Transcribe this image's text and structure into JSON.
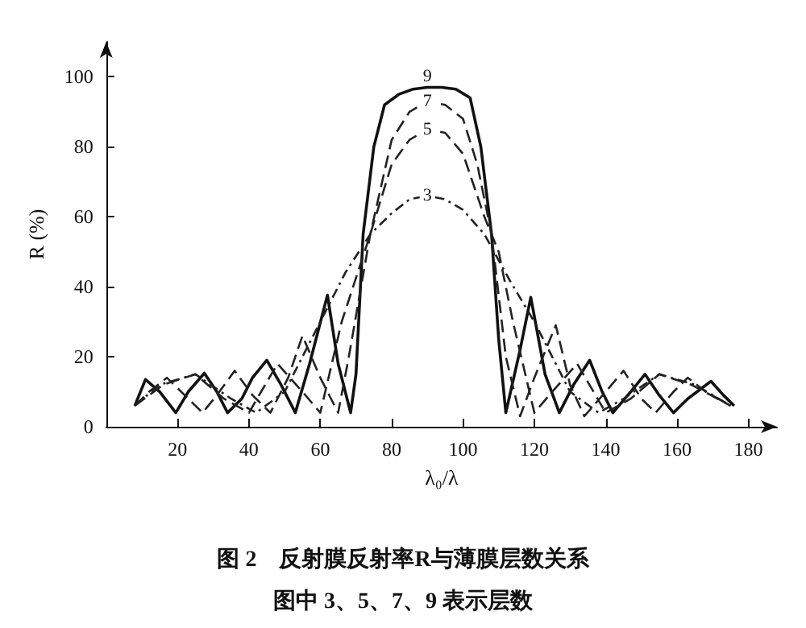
{
  "chart_data": {
    "type": "line",
    "title": "图 2　反射膜反射率R与薄膜层数关系",
    "subtitle": "图中 3、5、7、9 表示层数",
    "xlabel": "λ₀/λ",
    "ylabel": "R (%)",
    "xlim": [
      0,
      188
    ],
    "xticks": [
      20,
      40,
      60,
      80,
      100,
      120,
      140,
      160,
      180
    ],
    "ylim": [
      0,
      110
    ],
    "yticks": [
      0,
      20,
      40,
      60,
      80,
      100
    ],
    "grid": false,
    "legend": false,
    "marker": "none",
    "series": [
      {
        "name": "9",
        "color": "#111111",
        "line_style": "solid",
        "x": [
          8,
          11,
          15,
          19.5,
          23,
          27.5,
          31,
          34,
          38,
          41,
          45,
          49,
          53,
          57,
          62,
          65,
          68.5,
          70,
          72,
          75,
          78,
          82,
          86,
          90,
          94,
          98,
          102,
          105,
          108,
          110,
          112,
          116,
          119,
          123,
          127,
          131,
          135.5,
          139,
          142,
          147,
          151,
          155,
          159,
          163,
          169.5,
          173,
          176
        ],
        "values": [
          6,
          13.5,
          10,
          4,
          10,
          15.3,
          10,
          4,
          8,
          14,
          19,
          12,
          4,
          18,
          37.6,
          18,
          4,
          15,
          55,
          80,
          92,
          95,
          96.5,
          97,
          97,
          96.5,
          94,
          80,
          55,
          25,
          4,
          22,
          37,
          15,
          4,
          12,
          19,
          10,
          4,
          10,
          15,
          9,
          4,
          8,
          13,
          9,
          6
        ]
      },
      {
        "name": "7",
        "color": "#222222",
        "line_style": "dashed",
        "x": [
          8,
          12,
          17,
          22,
          27,
          31,
          36,
          41,
          46,
          51,
          55,
          60,
          65,
          68,
          74,
          80,
          85,
          90,
          95,
          100,
          104,
          108,
          112,
          116,
          120,
          126,
          130,
          134,
          140,
          145,
          150,
          154,
          159,
          163,
          168,
          175
        ],
        "values": [
          6,
          10,
          14,
          9,
          4,
          9,
          16,
          9,
          4,
          14,
          26,
          14,
          4,
          20,
          55,
          82,
          90,
          93,
          92,
          88,
          75,
          55,
          20,
          3,
          14,
          29,
          12,
          3,
          10,
          16,
          8,
          4,
          10,
          14,
          10,
          6
        ]
      },
      {
        "name": "5",
        "color": "#222222",
        "line_style": "dashed",
        "x": [
          8,
          16,
          25,
          33,
          40,
          48,
          55,
          60,
          66,
          74,
          80,
          85,
          90,
          95,
          100,
          106,
          110,
          114,
          120,
          125,
          132,
          140,
          147,
          155,
          164,
          175
        ],
        "values": [
          6,
          12,
          15,
          8,
          4,
          18,
          10,
          4,
          30,
          55,
          75,
          82,
          85,
          84,
          78,
          60,
          50,
          30,
          4,
          10,
          18,
          4,
          8,
          15,
          12,
          6
        ]
      },
      {
        "name": "3",
        "color": "#222222",
        "line_style": "dotted",
        "x": [
          8,
          15,
          25,
          35,
          42,
          50,
          55,
          60,
          67,
          74,
          80,
          85,
          90,
          95,
          100,
          106,
          113,
          120,
          125,
          130,
          138,
          145,
          155,
          165,
          175
        ],
        "values": [
          6,
          12,
          15,
          8,
          4,
          10,
          20,
          30,
          44,
          55,
          61,
          65,
          66,
          65,
          62,
          55,
          42,
          30,
          20,
          10,
          4,
          8,
          15,
          12,
          6
        ]
      }
    ]
  }
}
